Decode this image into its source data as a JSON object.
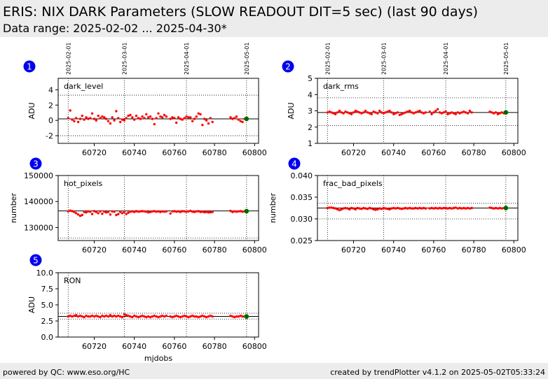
{
  "header": {
    "title": "ERIS: NIX DARK Parameters (SLOW READOUT DIT=5 sec) (last 90 days)",
    "subtitle": "Data range: 2025-02-02 ... 2025-04-30*"
  },
  "footer": {
    "left": "powered by QC: www.eso.org/HC",
    "right": "created by trendPlotter v4.1.2 on 2025-05-02T05:33:24"
  },
  "colors": {
    "points": "#ff0000",
    "last_point": "#006400",
    "badge": "#0000ee",
    "header_bg": "#ececec"
  },
  "date_markers": [
    {
      "label": "2025-02-01",
      "mjd": 60707
    },
    {
      "label": "2025-03-01",
      "mjd": 60735
    },
    {
      "label": "2025-04-01",
      "mjd": 60766
    },
    {
      "label": "2025-05-01",
      "mjd": 60796
    }
  ],
  "xaxis": {
    "xlim": [
      60702,
      60802
    ],
    "ticks": [
      60720,
      60740,
      60760,
      60780,
      60800
    ],
    "label": "mjdobs"
  },
  "chart_data": [
    {
      "type": "scatter",
      "id": "1",
      "name": "dark_level",
      "ylabel": "ADU",
      "ylim": [
        -3,
        5.5
      ],
      "yticks": [
        -2,
        0,
        2,
        4
      ],
      "ref_line": 0.2,
      "thresholds": [
        -2.0,
        3.3
      ],
      "x": [
        60707,
        60708,
        60709,
        60710,
        60711,
        60712,
        60713,
        60714,
        60715,
        60716,
        60717,
        60718,
        60719,
        60720,
        60721,
        60722,
        60723,
        60724,
        60725,
        60726,
        60727,
        60728,
        60729,
        60730,
        60731,
        60732,
        60733,
        60734,
        60735,
        60736,
        60737,
        60738,
        60739,
        60740,
        60741,
        60742,
        60743,
        60744,
        60745,
        60746,
        60747,
        60748,
        60749,
        60750,
        60751,
        60752,
        60753,
        60754,
        60755,
        60756,
        60758,
        60759,
        60760,
        60761,
        60762,
        60763,
        60764,
        60765,
        60766,
        60767,
        60768,
        60769,
        60770,
        60771,
        60772,
        60773,
        60774,
        60775,
        60776,
        60777,
        60778,
        60779,
        60788,
        60789,
        60790,
        60791,
        60792,
        60793,
        60794,
        60795
      ],
      "y": [
        0.3,
        1.3,
        0.1,
        -0.1,
        0.3,
        -0.2,
        0.2,
        0.6,
        0.1,
        0.4,
        0.2,
        0.3,
        0.9,
        0.2,
        0.0,
        0.6,
        0.3,
        0.5,
        0.4,
        0.2,
        -0.1,
        -0.4,
        0.4,
        0.0,
        1.2,
        0.3,
        -0.2,
        0.1,
        0.0,
        0.3,
        0.6,
        0.7,
        0.4,
        0.1,
        0.6,
        0.3,
        0.2,
        0.5,
        0.3,
        0.8,
        0.4,
        0.5,
        0.2,
        -0.5,
        0.3,
        0.9,
        0.5,
        0.4,
        0.7,
        0.5,
        0.2,
        0.4,
        0.3,
        -0.3,
        0.4,
        0.2,
        0.1,
        0.3,
        0.5,
        0.4,
        0.4,
        -0.1,
        0.2,
        0.5,
        0.9,
        0.8,
        -0.6,
        0.2,
        0.0,
        -0.4,
        0.3,
        -0.2,
        0.4,
        0.2,
        0.3,
        0.5,
        0.1,
        -0.1,
        -0.2,
        0.2
      ],
      "last_point": [
        60796,
        0.2
      ]
    },
    {
      "type": "scatter",
      "id": "2",
      "name": "dark_rms",
      "ylabel": "ADU",
      "ylim": [
        1,
        5
      ],
      "yticks": [
        1,
        2,
        3,
        4,
        5
      ],
      "ref_line": 2.9,
      "thresholds": [
        2.1,
        3.8
      ],
      "x": [
        60707,
        60708,
        60709,
        60710,
        60711,
        60712,
        60713,
        60714,
        60715,
        60716,
        60717,
        60718,
        60719,
        60720,
        60721,
        60722,
        60723,
        60724,
        60725,
        60726,
        60727,
        60728,
        60729,
        60730,
        60731,
        60732,
        60733,
        60734,
        60735,
        60736,
        60737,
        60738,
        60739,
        60740,
        60741,
        60742,
        60743,
        60744,
        60745,
        60746,
        60747,
        60748,
        60749,
        60750,
        60751,
        60752,
        60753,
        60754,
        60755,
        60756,
        60758,
        60759,
        60760,
        60761,
        60762,
        60763,
        60764,
        60765,
        60766,
        60767,
        60768,
        60769,
        60770,
        60771,
        60772,
        60773,
        60774,
        60775,
        60776,
        60777,
        60778,
        60779,
        60788,
        60789,
        60790,
        60791,
        60792,
        60793,
        60794,
        60795
      ],
      "y": [
        2.9,
        2.95,
        2.9,
        2.85,
        2.8,
        2.9,
        3.0,
        2.9,
        2.85,
        2.95,
        2.9,
        2.85,
        2.8,
        2.9,
        3.0,
        2.95,
        2.9,
        2.85,
        2.9,
        3.0,
        2.9,
        2.85,
        2.8,
        2.95,
        2.9,
        2.85,
        3.0,
        2.9,
        2.85,
        2.9,
        2.95,
        3.0,
        2.9,
        2.8,
        2.85,
        2.9,
        2.75,
        2.8,
        2.85,
        2.9,
        2.95,
        3.0,
        2.9,
        2.85,
        2.9,
        2.95,
        3.0,
        2.9,
        2.85,
        2.9,
        2.95,
        2.8,
        2.9,
        3.0,
        3.1,
        2.9,
        2.85,
        2.9,
        2.95,
        2.8,
        2.85,
        2.9,
        2.85,
        2.8,
        2.9,
        2.85,
        2.9,
        2.95,
        2.9,
        2.85,
        3.0,
        2.9,
        2.95,
        2.9,
        2.85,
        2.9,
        2.8,
        2.85,
        2.9,
        2.85
      ],
      "last_point": [
        60796,
        2.9
      ]
    },
    {
      "type": "scatter",
      "id": "3",
      "name": "hot_pixels",
      "ylabel": "number",
      "ylim": [
        125000,
        150000
      ],
      "yticks": [
        130000,
        140000,
        150000
      ],
      "ref_line": 136400,
      "thresholds": [
        126000
      ],
      "x": [
        60707,
        60708,
        60709,
        60710,
        60711,
        60712,
        60713,
        60714,
        60715,
        60716,
        60717,
        60718,
        60719,
        60720,
        60721,
        60722,
        60723,
        60724,
        60725,
        60726,
        60727,
        60728,
        60729,
        60730,
        60731,
        60732,
        60733,
        60734,
        60735,
        60736,
        60737,
        60738,
        60739,
        60740,
        60741,
        60742,
        60743,
        60744,
        60745,
        60746,
        60747,
        60748,
        60749,
        60750,
        60751,
        60752,
        60753,
        60754,
        60755,
        60756,
        60758,
        60759,
        60760,
        60761,
        60762,
        60763,
        60764,
        60765,
        60766,
        60767,
        60768,
        60769,
        60770,
        60771,
        60772,
        60773,
        60774,
        60775,
        60776,
        60777,
        60778,
        60779,
        60788,
        60789,
        60790,
        60791,
        60792,
        60793,
        60794,
        60795
      ],
      "y": [
        136200,
        136500,
        136300,
        136000,
        135500,
        135000,
        134500,
        134800,
        136000,
        135800,
        136200,
        136100,
        135200,
        136300,
        136000,
        135500,
        136200,
        135300,
        136100,
        135800,
        136000,
        135000,
        136200,
        136100,
        134800,
        135200,
        136000,
        135500,
        136000,
        135200,
        135700,
        136100,
        136200,
        136000,
        136300,
        136100,
        136200,
        136300,
        136200,
        136100,
        135800,
        136000,
        136200,
        136300,
        136100,
        136200,
        136000,
        136200,
        136100,
        136200,
        135400,
        136200,
        136300,
        136100,
        136200,
        136000,
        136300,
        136200,
        136100,
        136200,
        136400,
        136100,
        136000,
        136200,
        136300,
        136000,
        136100,
        135900,
        136000,
        135800,
        135900,
        136000,
        136400,
        136000,
        136200,
        136100,
        136200,
        136300,
        136100,
        136200
      ],
      "last_point": [
        60796,
        136300
      ]
    },
    {
      "type": "scatter",
      "id": "4",
      "name": "frac_bad_pixels",
      "ylabel": "number",
      "ylim": [
        0.025,
        0.04
      ],
      "yticks": [
        0.025,
        0.03,
        0.035,
        0.04
      ],
      "ref_line": 0.0325,
      "thresholds": [
        0.03,
        0.0336
      ],
      "x": [
        60707,
        60708,
        60709,
        60710,
        60711,
        60712,
        60713,
        60714,
        60715,
        60716,
        60717,
        60718,
        60719,
        60720,
        60721,
        60722,
        60723,
        60724,
        60725,
        60726,
        60727,
        60728,
        60729,
        60730,
        60731,
        60732,
        60733,
        60734,
        60735,
        60736,
        60737,
        60738,
        60739,
        60740,
        60741,
        60742,
        60743,
        60744,
        60745,
        60746,
        60747,
        60748,
        60749,
        60750,
        60751,
        60752,
        60753,
        60754,
        60755,
        60756,
        60758,
        60759,
        60760,
        60761,
        60762,
        60763,
        60764,
        60765,
        60766,
        60767,
        60768,
        60769,
        60770,
        60771,
        60772,
        60773,
        60774,
        60775,
        60776,
        60777,
        60778,
        60779,
        60788,
        60789,
        60790,
        60791,
        60792,
        60793,
        60794,
        60795
      ],
      "y": [
        0.0325,
        0.0326,
        0.0326,
        0.0325,
        0.0324,
        0.0322,
        0.032,
        0.0322,
        0.0324,
        0.0325,
        0.0324,
        0.0322,
        0.0325,
        0.0324,
        0.0322,
        0.0325,
        0.0324,
        0.0323,
        0.0325,
        0.0324,
        0.0323,
        0.0325,
        0.0324,
        0.0322,
        0.0321,
        0.0322,
        0.0324,
        0.0323,
        0.0325,
        0.0324,
        0.0323,
        0.0322,
        0.0324,
        0.0325,
        0.0324,
        0.0325,
        0.0324,
        0.0323,
        0.0324,
        0.0325,
        0.0324,
        0.0325,
        0.0324,
        0.0324,
        0.0325,
        0.0324,
        0.0325,
        0.0324,
        0.0325,
        0.0324,
        0.0324,
        0.0325,
        0.0324,
        0.0325,
        0.0324,
        0.0325,
        0.0324,
        0.0325,
        0.0325,
        0.0324,
        0.0325,
        0.0324,
        0.0325,
        0.0326,
        0.0324,
        0.0325,
        0.0324,
        0.0325,
        0.0324,
        0.0325,
        0.0324,
        0.0325,
        0.0326,
        0.0325,
        0.0324,
        0.0325,
        0.0324,
        0.0325,
        0.0324,
        0.0325
      ],
      "last_point": [
        60796,
        0.0325
      ]
    },
    {
      "type": "scatter",
      "id": "5",
      "name": "RON",
      "ylabel": "ADU",
      "ylim": [
        0,
        10
      ],
      "yticks": [
        0.0,
        2.5,
        5.0,
        7.5,
        10.0
      ],
      "ref_line": 3.2,
      "thresholds": [
        2.8,
        3.7
      ],
      "x": [
        60707,
        60708,
        60709,
        60710,
        60711,
        60712,
        60713,
        60714,
        60715,
        60716,
        60717,
        60718,
        60719,
        60720,
        60721,
        60722,
        60723,
        60724,
        60725,
        60726,
        60727,
        60728,
        60729,
        60730,
        60731,
        60732,
        60733,
        60734,
        60735,
        60736,
        60737,
        60738,
        60739,
        60740,
        60741,
        60742,
        60743,
        60744,
        60745,
        60746,
        60747,
        60748,
        60749,
        60750,
        60751,
        60752,
        60753,
        60754,
        60755,
        60756,
        60758,
        60759,
        60760,
        60761,
        60762,
        60763,
        60764,
        60765,
        60766,
        60767,
        60768,
        60769,
        60770,
        60771,
        60772,
        60773,
        60774,
        60775,
        60776,
        60777,
        60778,
        60779,
        60788,
        60789,
        60790,
        60791,
        60792,
        60793,
        60794,
        60795
      ],
      "y": [
        3.2,
        3.3,
        3.2,
        3.3,
        3.4,
        3.2,
        3.3,
        3.2,
        3.1,
        3.3,
        3.2,
        3.2,
        3.3,
        3.2,
        3.3,
        3.2,
        3.1,
        3.3,
        3.2,
        3.3,
        3.2,
        3.4,
        3.2,
        3.3,
        3.2,
        3.3,
        3.2,
        3.1,
        3.5,
        3.4,
        3.3,
        3.2,
        3.1,
        3.3,
        3.2,
        3.1,
        3.2,
        3.3,
        3.2,
        3.1,
        3.2,
        3.1,
        3.2,
        3.3,
        3.2,
        3.1,
        3.2,
        3.3,
        3.2,
        3.3,
        3.2,
        3.1,
        3.2,
        3.3,
        3.2,
        3.1,
        3.2,
        3.3,
        3.2,
        3.1,
        3.2,
        3.3,
        3.2,
        3.2,
        3.1,
        3.2,
        3.3,
        3.2,
        3.1,
        3.2,
        3.3,
        3.2,
        3.3,
        3.2,
        3.1,
        3.2,
        3.2,
        3.3,
        3.2,
        3.2
      ],
      "last_point": [
        60796,
        3.2
      ]
    }
  ]
}
